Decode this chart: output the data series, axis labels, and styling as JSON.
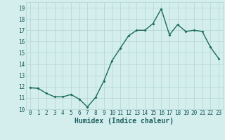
{
  "x": [
    0,
    1,
    2,
    3,
    4,
    5,
    6,
    7,
    8,
    9,
    10,
    11,
    12,
    13,
    14,
    15,
    16,
    17,
    18,
    19,
    20,
    21,
    22,
    23
  ],
  "y": [
    11.9,
    11.85,
    11.4,
    11.1,
    11.1,
    11.3,
    10.9,
    10.2,
    11.05,
    12.5,
    14.3,
    15.4,
    16.5,
    17.0,
    17.0,
    17.6,
    18.9,
    16.6,
    17.5,
    16.9,
    17.0,
    16.9,
    15.5,
    14.5
  ],
  "line_color": "#1a6b5e",
  "marker": "D",
  "marker_size": 2.0,
  "linewidth": 1.0,
  "bg_color": "#d4eeee",
  "grid_color": "#b8d8d8",
  "xlabel": "Humidex (Indice chaleur)",
  "xlim": [
    -0.5,
    23.5
  ],
  "ylim": [
    10.0,
    19.5
  ],
  "yticks": [
    10,
    11,
    12,
    13,
    14,
    15,
    16,
    17,
    18,
    19
  ],
  "xticks": [
    0,
    1,
    2,
    3,
    4,
    5,
    6,
    7,
    8,
    9,
    10,
    11,
    12,
    13,
    14,
    15,
    16,
    17,
    18,
    19,
    20,
    21,
    22,
    23
  ],
  "tick_fontsize": 5.5,
  "xlabel_fontsize": 7.0,
  "tick_color": "#1a5a5a"
}
